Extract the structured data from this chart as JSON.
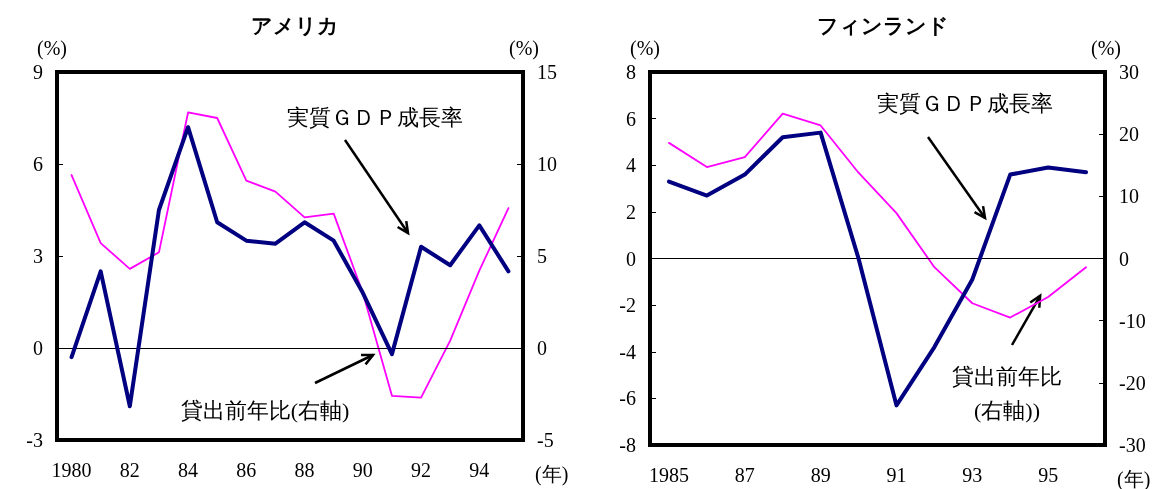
{
  "chart_data": [
    {
      "type": "line",
      "title": "アメリカ",
      "xlabel": "(年)",
      "ylabel": "(%)",
      "y2label": "(%)",
      "categories": [
        "1980",
        null,
        "82",
        null,
        "84",
        null,
        "86",
        null,
        "88",
        null,
        "90",
        null,
        "92",
        null,
        "94",
        null
      ],
      "series": [
        {
          "color": "#000080",
          "values": [
            -0.3,
            2.5,
            -1.9,
            4.5,
            7.2,
            4.1,
            3.5,
            3.4,
            4.1,
            3.5,
            1.8,
            -0.2,
            3.3,
            2.7,
            4.0,
            2.5
          ]
        },
        {
          "color": "#ff00ff",
          "axis": "y2",
          "values": [
            9.4,
            5.7,
            4.3,
            5.2,
            12.8,
            12.5,
            9.1,
            8.5,
            7.1,
            7.3,
            3.0,
            -2.6,
            -2.7,
            0.4,
            4.2,
            7.6
          ]
        }
      ],
      "annotations": [
        "実質ＧＤＰ成長率",
        "貸出前年比(右軸)"
      ],
      "ylim": [
        -3,
        9
      ],
      "yticks": [
        -3,
        0,
        3,
        6,
        9
      ],
      "y2lim": [
        -5,
        15
      ],
      "y2ticks": [
        -5,
        0,
        5,
        10,
        15
      ],
      "ref_lines": [
        {
          "axis": "y",
          "value": 0,
          "color": "#000000"
        }
      ],
      "grid": false
    },
    {
      "type": "line",
      "title": "フィンランド",
      "xlabel": "(年)",
      "ylabel": "(%)",
      "y2label": "(%)",
      "categories": [
        "1985",
        null,
        "87",
        null,
        "89",
        null,
        "91",
        null,
        "93",
        null,
        "95",
        null
      ],
      "series": [
        {
          "color": "#000080",
          "values": [
            3.3,
            2.7,
            3.6,
            5.2,
            5.4,
            0.0,
            -6.3,
            -3.8,
            -0.9,
            3.6,
            3.9,
            3.7
          ]
        },
        {
          "color": "#ff00ff",
          "axis": "y2",
          "values": [
            18.6,
            14.7,
            16.3,
            23.3,
            21.4,
            13.8,
            7.3,
            -1.4,
            -7.2,
            -9.5,
            -6.2,
            -1.4
          ]
        }
      ],
      "annotations": [
        "実質ＧＤＰ成長率",
        {
          "text": "貸出前年比(右軸))",
          "x": "95",
          "y": -1.6
        }
      ],
      "ylim": [
        -8,
        8
      ],
      "yticks": [
        -8,
        -6,
        -4,
        -2,
        0,
        2,
        4,
        6,
        8
      ],
      "y2lim": [
        -30,
        30
      ],
      "y2ticks": [
        -30,
        -20,
        -10,
        0,
        10,
        20,
        30
      ],
      "ref_lines": [
        {
          "axis": "y",
          "value": 0,
          "color": "#000000"
        }
      ],
      "grid": false
    }
  ]
}
